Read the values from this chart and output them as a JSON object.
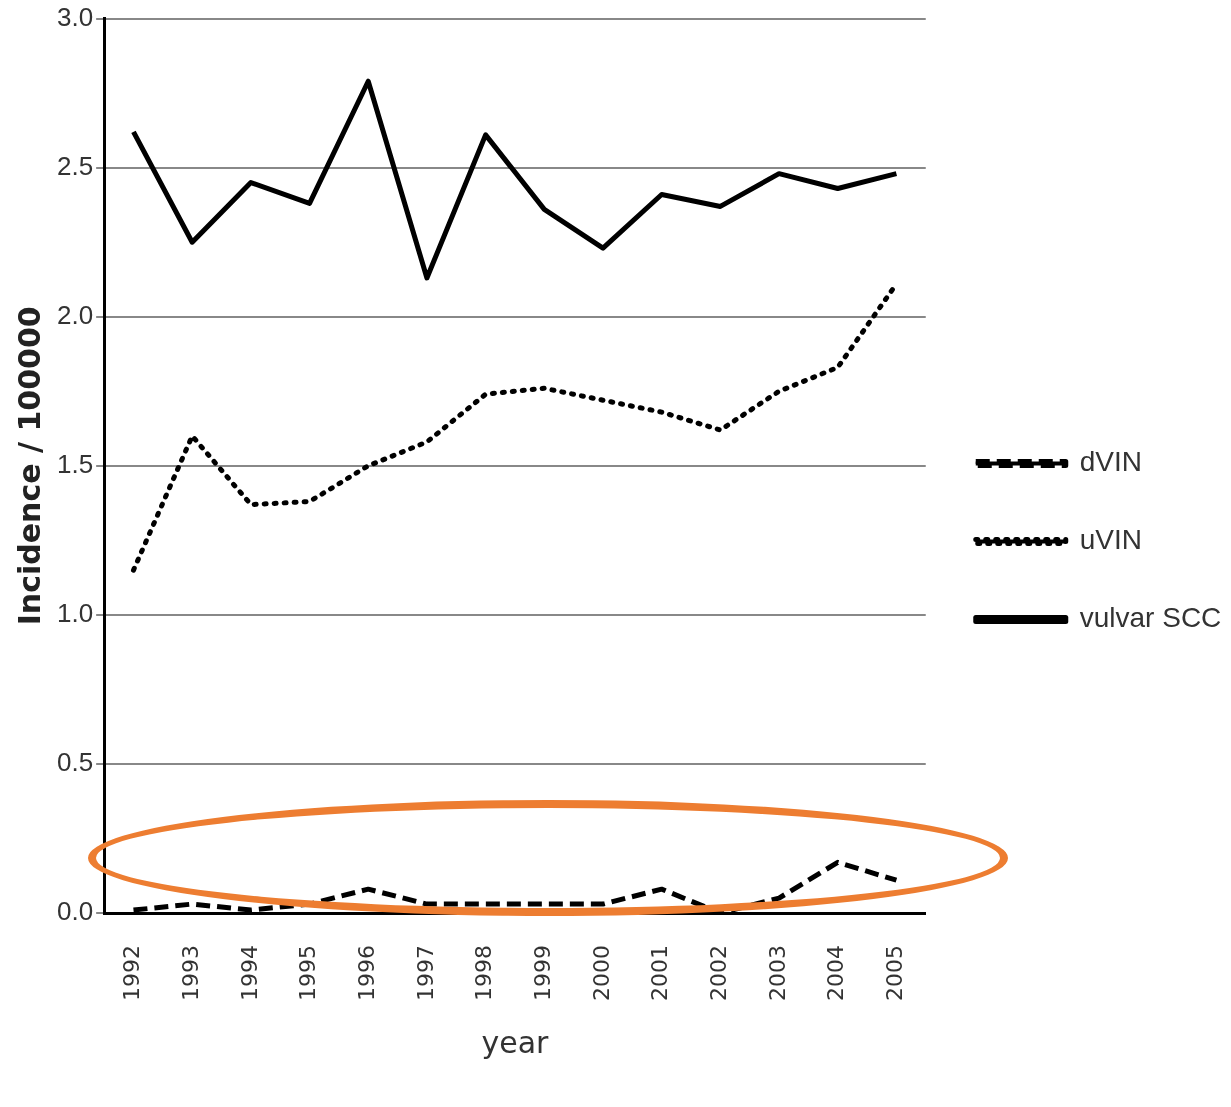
{
  "chart_data": {
    "type": "line",
    "xlabel": "year",
    "ylabel": "Incidence / 100000",
    "categories": [
      "1992",
      "1993",
      "1994",
      "1995",
      "1996",
      "1997",
      "1998",
      "1999",
      "2000",
      "2001",
      "2002",
      "2003",
      "2004",
      "2005"
    ],
    "series": [
      {
        "name": "dVIN",
        "color": "#000000",
        "line_style": "dashed",
        "values": [
          0.01,
          0.03,
          0.01,
          0.03,
          0.08,
          0.03,
          0.03,
          0.03,
          0.03,
          0.08,
          0.0,
          0.05,
          0.17,
          0.11
        ]
      },
      {
        "name": "uVIN",
        "color": "#000000",
        "line_style": "dotted",
        "values": [
          1.15,
          1.6,
          1.37,
          1.38,
          1.5,
          1.58,
          1.74,
          1.76,
          1.72,
          1.68,
          1.62,
          1.75,
          1.83,
          2.11
        ]
      },
      {
        "name": "vulvar SCC",
        "color": "#000000",
        "line_style": "solid",
        "values": [
          2.62,
          2.25,
          2.45,
          2.38,
          2.79,
          2.13,
          2.61,
          2.36,
          2.23,
          2.41,
          2.37,
          2.48,
          2.43,
          2.48
        ]
      }
    ],
    "ylim": [
      0,
      3
    ],
    "yticks": [
      {
        "value": 0,
        "label": "0.0"
      },
      {
        "value": 0.5,
        "label": "0.5"
      },
      {
        "value": 1,
        "label": "1.0"
      },
      {
        "value": 1.5,
        "label": "1.5"
      },
      {
        "value": 2,
        "label": "2.0"
      },
      {
        "value": 2.5,
        "label": "2.5"
      },
      {
        "value": 3,
        "label": "3.0"
      }
    ],
    "grid": "y",
    "legend": "right",
    "marker": "none"
  }
}
